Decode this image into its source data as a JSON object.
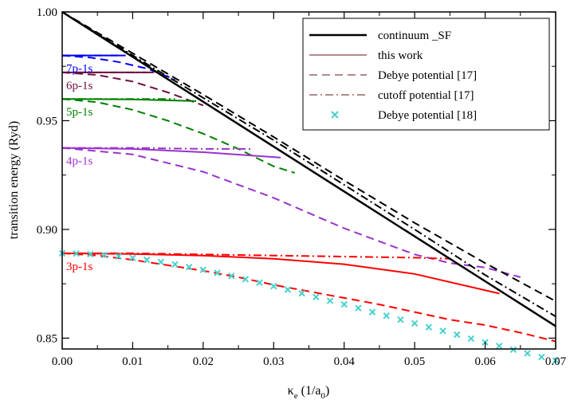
{
  "chart_data": {
    "type": "line",
    "xlabel": "κ",
    "xlabel_sub": "e",
    "xlabel_unit": " (1/a",
    "xlabel_unit_sub": "0",
    "xlabel_unit_end": ")",
    "ylabel": "transition energy (Ryd)",
    "xlim": [
      0,
      0.07
    ],
    "ylim": [
      0.845,
      1.0
    ],
    "x_ticks": [
      0,
      0.01,
      0.02,
      0.03,
      0.04,
      0.05,
      0.06,
      0.07
    ],
    "x_tick_labels": [
      "0.00",
      "0.01",
      "0.02",
      "0.03",
      "0.04",
      "0.05",
      "0.06",
      "0.07"
    ],
    "y_ticks": [
      0.85,
      0.9,
      0.95,
      1.0
    ],
    "y_tick_labels": [
      "0.85",
      "0.90",
      "0.95",
      "1.00"
    ],
    "grid": false,
    "legend_position": "top-right",
    "legend": [
      {
        "label": "continuum _SF",
        "style": "solid",
        "color": "#000000",
        "width": 2.5
      },
      {
        "label": "this work",
        "style": "solid",
        "color": "#b08a8a",
        "width": 2
      },
      {
        "label": "Debye potential [17]",
        "style": "dashed",
        "color": "#b08a8a",
        "width": 2
      },
      {
        "label": "cutoff potential [17]",
        "style": "dashdot",
        "color": "#b08a8a",
        "width": 2
      },
      {
        "label": "Debye potential [18]",
        "style": "marker",
        "color": "#48d1cc",
        "width": 2
      }
    ],
    "transitions": [
      {
        "label": "7p-1s",
        "color": "#0000ff",
        "this_work": [
          [
            0,
            0.98
          ],
          [
            0.009,
            0.98
          ]
        ],
        "debye_17": [
          [
            0,
            0.98
          ],
          [
            0.004,
            0.979
          ],
          [
            0.008,
            0.977
          ],
          [
            0.012,
            0.974
          ],
          [
            0.016,
            0.969
          ]
        ],
        "cutoff_17": [
          [
            0,
            0.98
          ],
          [
            0.004,
            0.98
          ],
          [
            0.008,
            0.98
          ]
        ]
      },
      {
        "label": "6p-1s",
        "color": "#6b1040",
        "this_work": [
          [
            0,
            0.9722
          ],
          [
            0.013,
            0.9722
          ]
        ],
        "debye_17": [
          [
            0,
            0.9722
          ],
          [
            0.005,
            0.971
          ],
          [
            0.01,
            0.968
          ],
          [
            0.015,
            0.963
          ],
          [
            0.02,
            0.957
          ]
        ],
        "cutoff_17": [
          [
            0,
            0.9722
          ],
          [
            0.006,
            0.9722
          ],
          [
            0.012,
            0.9722
          ]
        ]
      },
      {
        "label": "5p-1s",
        "color": "#008000",
        "this_work": [
          [
            0,
            0.96
          ],
          [
            0.01,
            0.9598
          ],
          [
            0.019,
            0.959
          ]
        ],
        "debye_17": [
          [
            0,
            0.96
          ],
          [
            0.005,
            0.9585
          ],
          [
            0.01,
            0.955
          ],
          [
            0.015,
            0.95
          ],
          [
            0.02,
            0.944
          ],
          [
            0.025,
            0.937
          ],
          [
            0.03,
            0.929
          ],
          [
            0.033,
            0.926
          ]
        ],
        "cutoff_17": [
          [
            0,
            0.96
          ],
          [
            0.008,
            0.96
          ],
          [
            0.016,
            0.96
          ]
        ]
      },
      {
        "label": "4p-1s",
        "color": "#9932cc",
        "this_work": [
          [
            0,
            0.9375
          ],
          [
            0.01,
            0.937
          ],
          [
            0.02,
            0.9355
          ],
          [
            0.031,
            0.933
          ]
        ],
        "debye_17": [
          [
            0,
            0.9375
          ],
          [
            0.01,
            0.9345
          ],
          [
            0.02,
            0.9265
          ],
          [
            0.03,
            0.9145
          ],
          [
            0.04,
            0.9005
          ],
          [
            0.05,
            0.8885
          ],
          [
            0.055,
            0.8845
          ],
          [
            0.06,
            0.8825
          ],
          [
            0.065,
            0.878
          ]
        ],
        "cutoff_17": [
          [
            0,
            0.9375
          ],
          [
            0.01,
            0.9375
          ],
          [
            0.02,
            0.937
          ],
          [
            0.027,
            0.937
          ]
        ]
      },
      {
        "label": "3p-1s",
        "color": "#ff0000",
        "this_work": [
          [
            0,
            0.889
          ],
          [
            0.01,
            0.8887
          ],
          [
            0.02,
            0.888
          ],
          [
            0.03,
            0.8865
          ],
          [
            0.04,
            0.884
          ],
          [
            0.05,
            0.8795
          ],
          [
            0.062,
            0.8705
          ]
        ],
        "debye_17": [
          [
            0,
            0.889
          ],
          [
            0.005,
            0.888
          ],
          [
            0.01,
            0.886
          ],
          [
            0.015,
            0.8835
          ],
          [
            0.02,
            0.881
          ],
          [
            0.025,
            0.878
          ],
          [
            0.03,
            0.8745
          ],
          [
            0.035,
            0.8715
          ],
          [
            0.04,
            0.8685
          ],
          [
            0.045,
            0.8655
          ],
          [
            0.05,
            0.862
          ],
          [
            0.055,
            0.8585
          ],
          [
            0.06,
            0.856
          ],
          [
            0.065,
            0.8525
          ],
          [
            0.07,
            0.8485
          ]
        ],
        "cutoff_17": [
          [
            0,
            0.889
          ],
          [
            0.01,
            0.889
          ],
          [
            0.02,
            0.8885
          ],
          [
            0.03,
            0.888
          ],
          [
            0.04,
            0.8875
          ],
          [
            0.05,
            0.887
          ],
          [
            0.055,
            0.8865
          ]
        ]
      }
    ],
    "continuum": {
      "this_work": [
        [
          0,
          1.0
        ],
        [
          0.07,
          0.8555
        ]
      ],
      "debye_17": [
        [
          0,
          1.0
        ],
        [
          0.01,
          0.981
        ],
        [
          0.02,
          0.962
        ],
        [
          0.03,
          0.9425
        ],
        [
          0.04,
          0.9225
        ],
        [
          0.05,
          0.903
        ],
        [
          0.06,
          0.8845
        ],
        [
          0.07,
          0.867
        ]
      ],
      "cutoff_17": [
        [
          0,
          1.0
        ],
        [
          0.01,
          0.98
        ],
        [
          0.02,
          0.9605
        ],
        [
          0.03,
          0.941
        ],
        [
          0.04,
          0.9205
        ],
        [
          0.05,
          0.9
        ],
        [
          0.06,
          0.879
        ],
        [
          0.07,
          0.86
        ]
      ]
    },
    "debye_18_points": {
      "color": "#48d1cc",
      "x": [
        0.0,
        0.002,
        0.004,
        0.006,
        0.008,
        0.01,
        0.012,
        0.014,
        0.016,
        0.018,
        0.02,
        0.022,
        0.024,
        0.026,
        0.028,
        0.03,
        0.032,
        0.034,
        0.036,
        0.038,
        0.04,
        0.042,
        0.044,
        0.046,
        0.048,
        0.05,
        0.052,
        0.054,
        0.056,
        0.058,
        0.06,
        0.062,
        0.064,
        0.066,
        0.068,
        0.07
      ],
      "y": [
        0.889,
        0.8889,
        0.8886,
        0.8882,
        0.8876,
        0.8869,
        0.886,
        0.885,
        0.8839,
        0.8827,
        0.8814,
        0.88,
        0.8786,
        0.8771,
        0.8755,
        0.8739,
        0.8723,
        0.8706,
        0.8689,
        0.8672,
        0.8655,
        0.8638,
        0.862,
        0.8603,
        0.8585,
        0.8568,
        0.855,
        0.8533,
        0.8516,
        0.8498,
        0.8481,
        0.8464,
        0.8447,
        0.843,
        0.8413,
        0.8397
      ]
    }
  }
}
